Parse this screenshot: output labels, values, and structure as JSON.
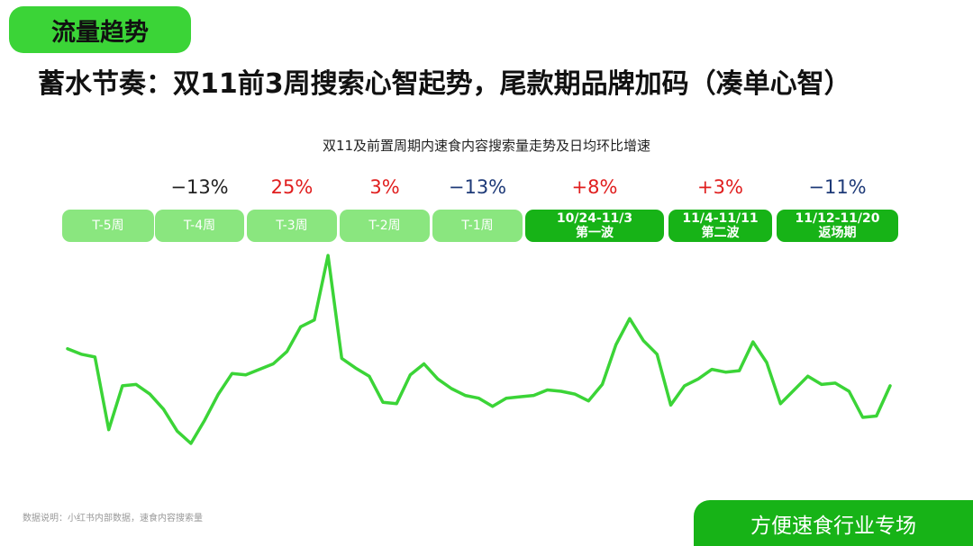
{
  "section_tag": "流量趋势",
  "headline": "蓄水节奏：双11前3周搜索心智起势，尾款期品牌加码（凑单心智）",
  "chart_title": "双11及前置周期内速食内容搜索量走势及日均环比增速",
  "colors": {
    "green": "#3bd437",
    "light_green": "#8ae67f",
    "dark_green": "#17b317",
    "red": "#e01e1e",
    "navy": "#1e3a78",
    "dark": "#222222"
  },
  "periods": [
    {
      "label": "T-5周",
      "label2": "",
      "rate": "",
      "rate_color": "dark",
      "style": "light"
    },
    {
      "label": "T-4周",
      "label2": "",
      "rate": "−13%",
      "rate_color": "dark",
      "style": "light"
    },
    {
      "label": "T-3周",
      "label2": "",
      "rate": "25%",
      "rate_color": "red",
      "style": "light"
    },
    {
      "label": "T-2周",
      "label2": "",
      "rate": "3%",
      "rate_color": "red",
      "style": "light"
    },
    {
      "label": "T-1周",
      "label2": "",
      "rate": "−13%",
      "rate_color": "navy",
      "style": "light"
    },
    {
      "label": "10/24-11/3",
      "label2": "第一波",
      "rate": "+8%",
      "rate_color": "red",
      "style": "dark"
    },
    {
      "label": "11/4-11/11",
      "label2": "第二波",
      "rate": "+3%",
      "rate_color": "red",
      "style": "dark"
    },
    {
      "label": "11/12-11/20",
      "label2": "返场期",
      "rate": "−11%",
      "rate_color": "navy",
      "style": "dark"
    }
  ],
  "chart_data": {
    "type": "line",
    "title": "双11及前置周期内速食内容搜索量走势及日均环比增速",
    "xlabel": "",
    "ylabel": "",
    "axes_visible": false,
    "grid": false,
    "series": [
      {
        "values": [
          62,
          58,
          56,
          3,
          35,
          36,
          29,
          18,
          2,
          -7,
          10,
          29,
          44,
          43,
          47,
          51,
          60,
          78,
          83,
          130,
          55,
          48,
          42,
          23,
          22,
          43,
          51,
          40,
          33,
          28,
          26,
          20,
          26,
          27,
          28,
          32,
          31,
          29,
          24,
          36,
          65,
          84,
          68,
          58,
          21,
          35,
          40,
          47,
          45,
          46,
          67,
          52,
          22,
          32,
          42,
          36,
          37,
          31,
          12,
          13,
          35
        ]
      }
    ],
    "ylim": [
      -15,
      135
    ]
  },
  "footnote": "数据说明：小红书内部数据，速食内容搜索量",
  "badge": "方便速食行业专场"
}
